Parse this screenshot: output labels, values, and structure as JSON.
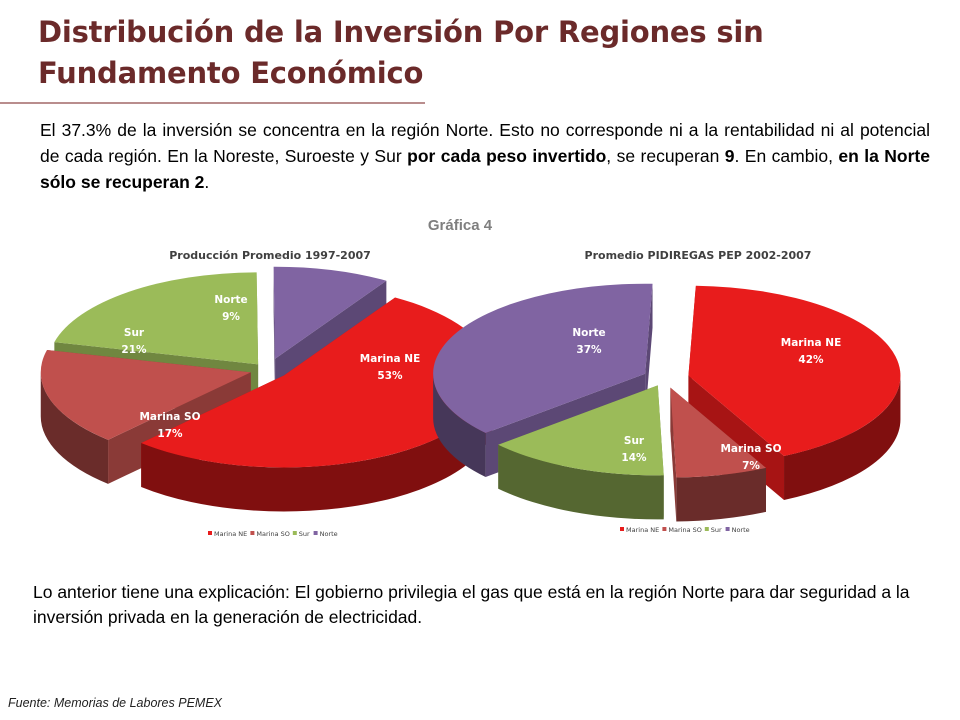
{
  "slide": {
    "title_line1": "Distribución de la Inversión Por Regiones sin",
    "title_line2": "Fundamento Económico",
    "para1": {
      "t1": "El 37.3% de la inversión se concentra en la región Norte. Esto no corresponde ni a la rentabilidad ni al potencial de cada región. En la Noreste, Suroeste y Sur ",
      "b1": "por cada peso invertido",
      "t2": ", se recuperan ",
      "b2": "9",
      "t3": ". En cambio, ",
      "b3": "en la Norte sólo se recuperan 2",
      "t4": "."
    },
    "graph_label": "Gráfica 4",
    "para2": "Lo anterior tiene una explicación: El gobierno privilegia el gas que está en la región Norte para dar seguridad a la inversión privada en la generación de electricidad.",
    "source": "Fuente: Memorias de Labores PEMEX"
  },
  "colors": {
    "title": "#6b2a2a",
    "Marina NE": "#e81c1c",
    "Marina SO": "#c0504d",
    "Sur": "#9bbb59",
    "Norte": "#8064a2"
  },
  "chart_data": [
    {
      "type": "pie",
      "title": "Producción Promedio 1997-2007",
      "categories": [
        "Marina NE",
        "Marina SO",
        "Sur",
        "Norte"
      ],
      "values": [
        53,
        17,
        21,
        9
      ],
      "labels": [
        "53%",
        "17%",
        "21%",
        "9%"
      ],
      "legend": "bottom",
      "style": "3d-exploded"
    },
    {
      "type": "pie",
      "title": "Promedio PIDIREGAS PEP 2002-2007",
      "categories": [
        "Marina NE",
        "Marina SO",
        "Sur",
        "Norte"
      ],
      "values": [
        42,
        7,
        14,
        37
      ],
      "labels": [
        "42%",
        "7%",
        "14%",
        "37%"
      ],
      "legend": "bottom",
      "style": "3d-exploded"
    }
  ]
}
